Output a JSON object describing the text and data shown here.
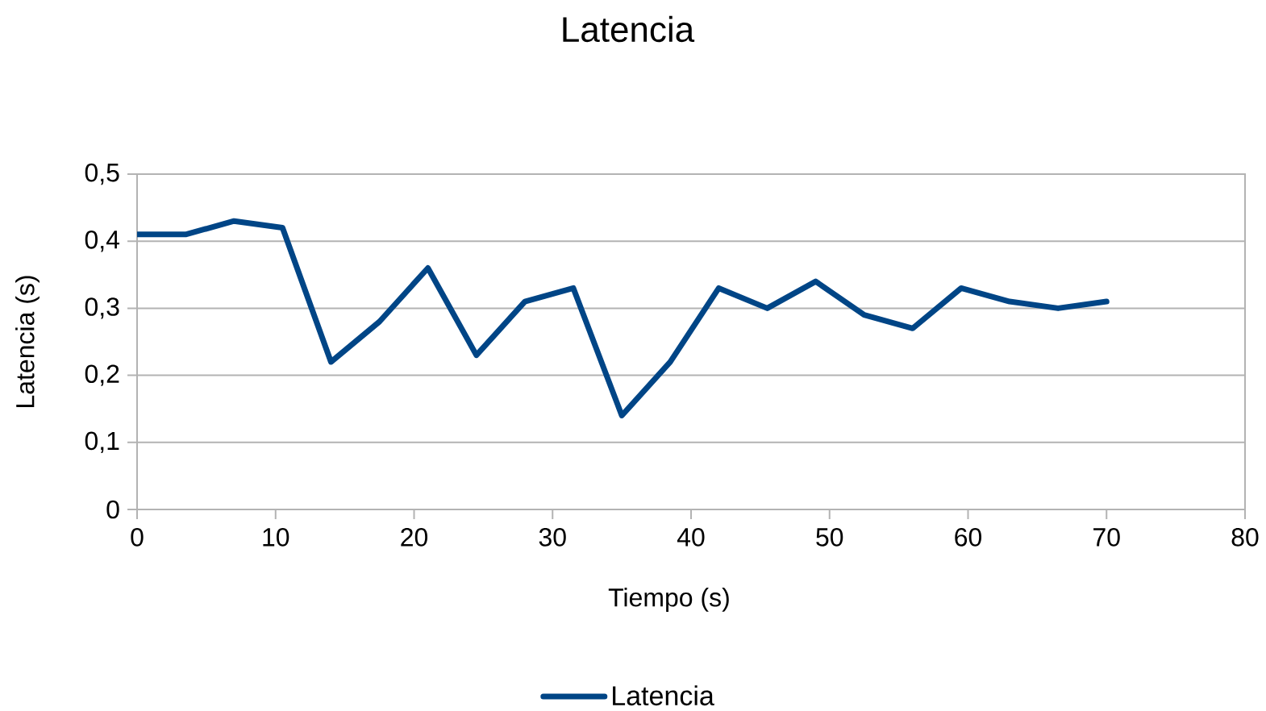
{
  "chart_data": {
    "type": "line",
    "title": "Latencia",
    "xlabel": "Tiempo (s)",
    "ylabel": "Latencia (s)",
    "x": [
      0,
      3.5,
      7,
      10.5,
      14,
      17.5,
      21,
      24.5,
      28,
      31.5,
      35,
      38.5,
      42,
      45.5,
      49,
      52.5,
      56,
      59.5,
      63,
      66.5,
      70
    ],
    "series": [
      {
        "name": "Latencia",
        "color": "#004586",
        "values": [
          0.41,
          0.41,
          0.43,
          0.42,
          0.22,
          0.28,
          0.36,
          0.23,
          0.31,
          0.33,
          0.14,
          0.22,
          0.33,
          0.3,
          0.34,
          0.29,
          0.27,
          0.33,
          0.31,
          0.3,
          0.31
        ]
      }
    ],
    "xlim": [
      0,
      80
    ],
    "xticks": [
      0,
      10,
      20,
      30,
      40,
      50,
      60,
      70,
      80
    ],
    "ylim": [
      0,
      0.5
    ],
    "yticks": [
      0,
      {
        "value": 0.1,
        "label": "0,1"
      },
      {
        "value": 0.2,
        "label": "0,2"
      },
      {
        "value": 0.3,
        "label": "0,3"
      },
      {
        "value": 0.4,
        "label": "0,4"
      },
      {
        "value": 0.5,
        "label": "0,5"
      }
    ],
    "grid": "y",
    "legend": "bottom",
    "marker": "none",
    "line_style": "solid"
  }
}
